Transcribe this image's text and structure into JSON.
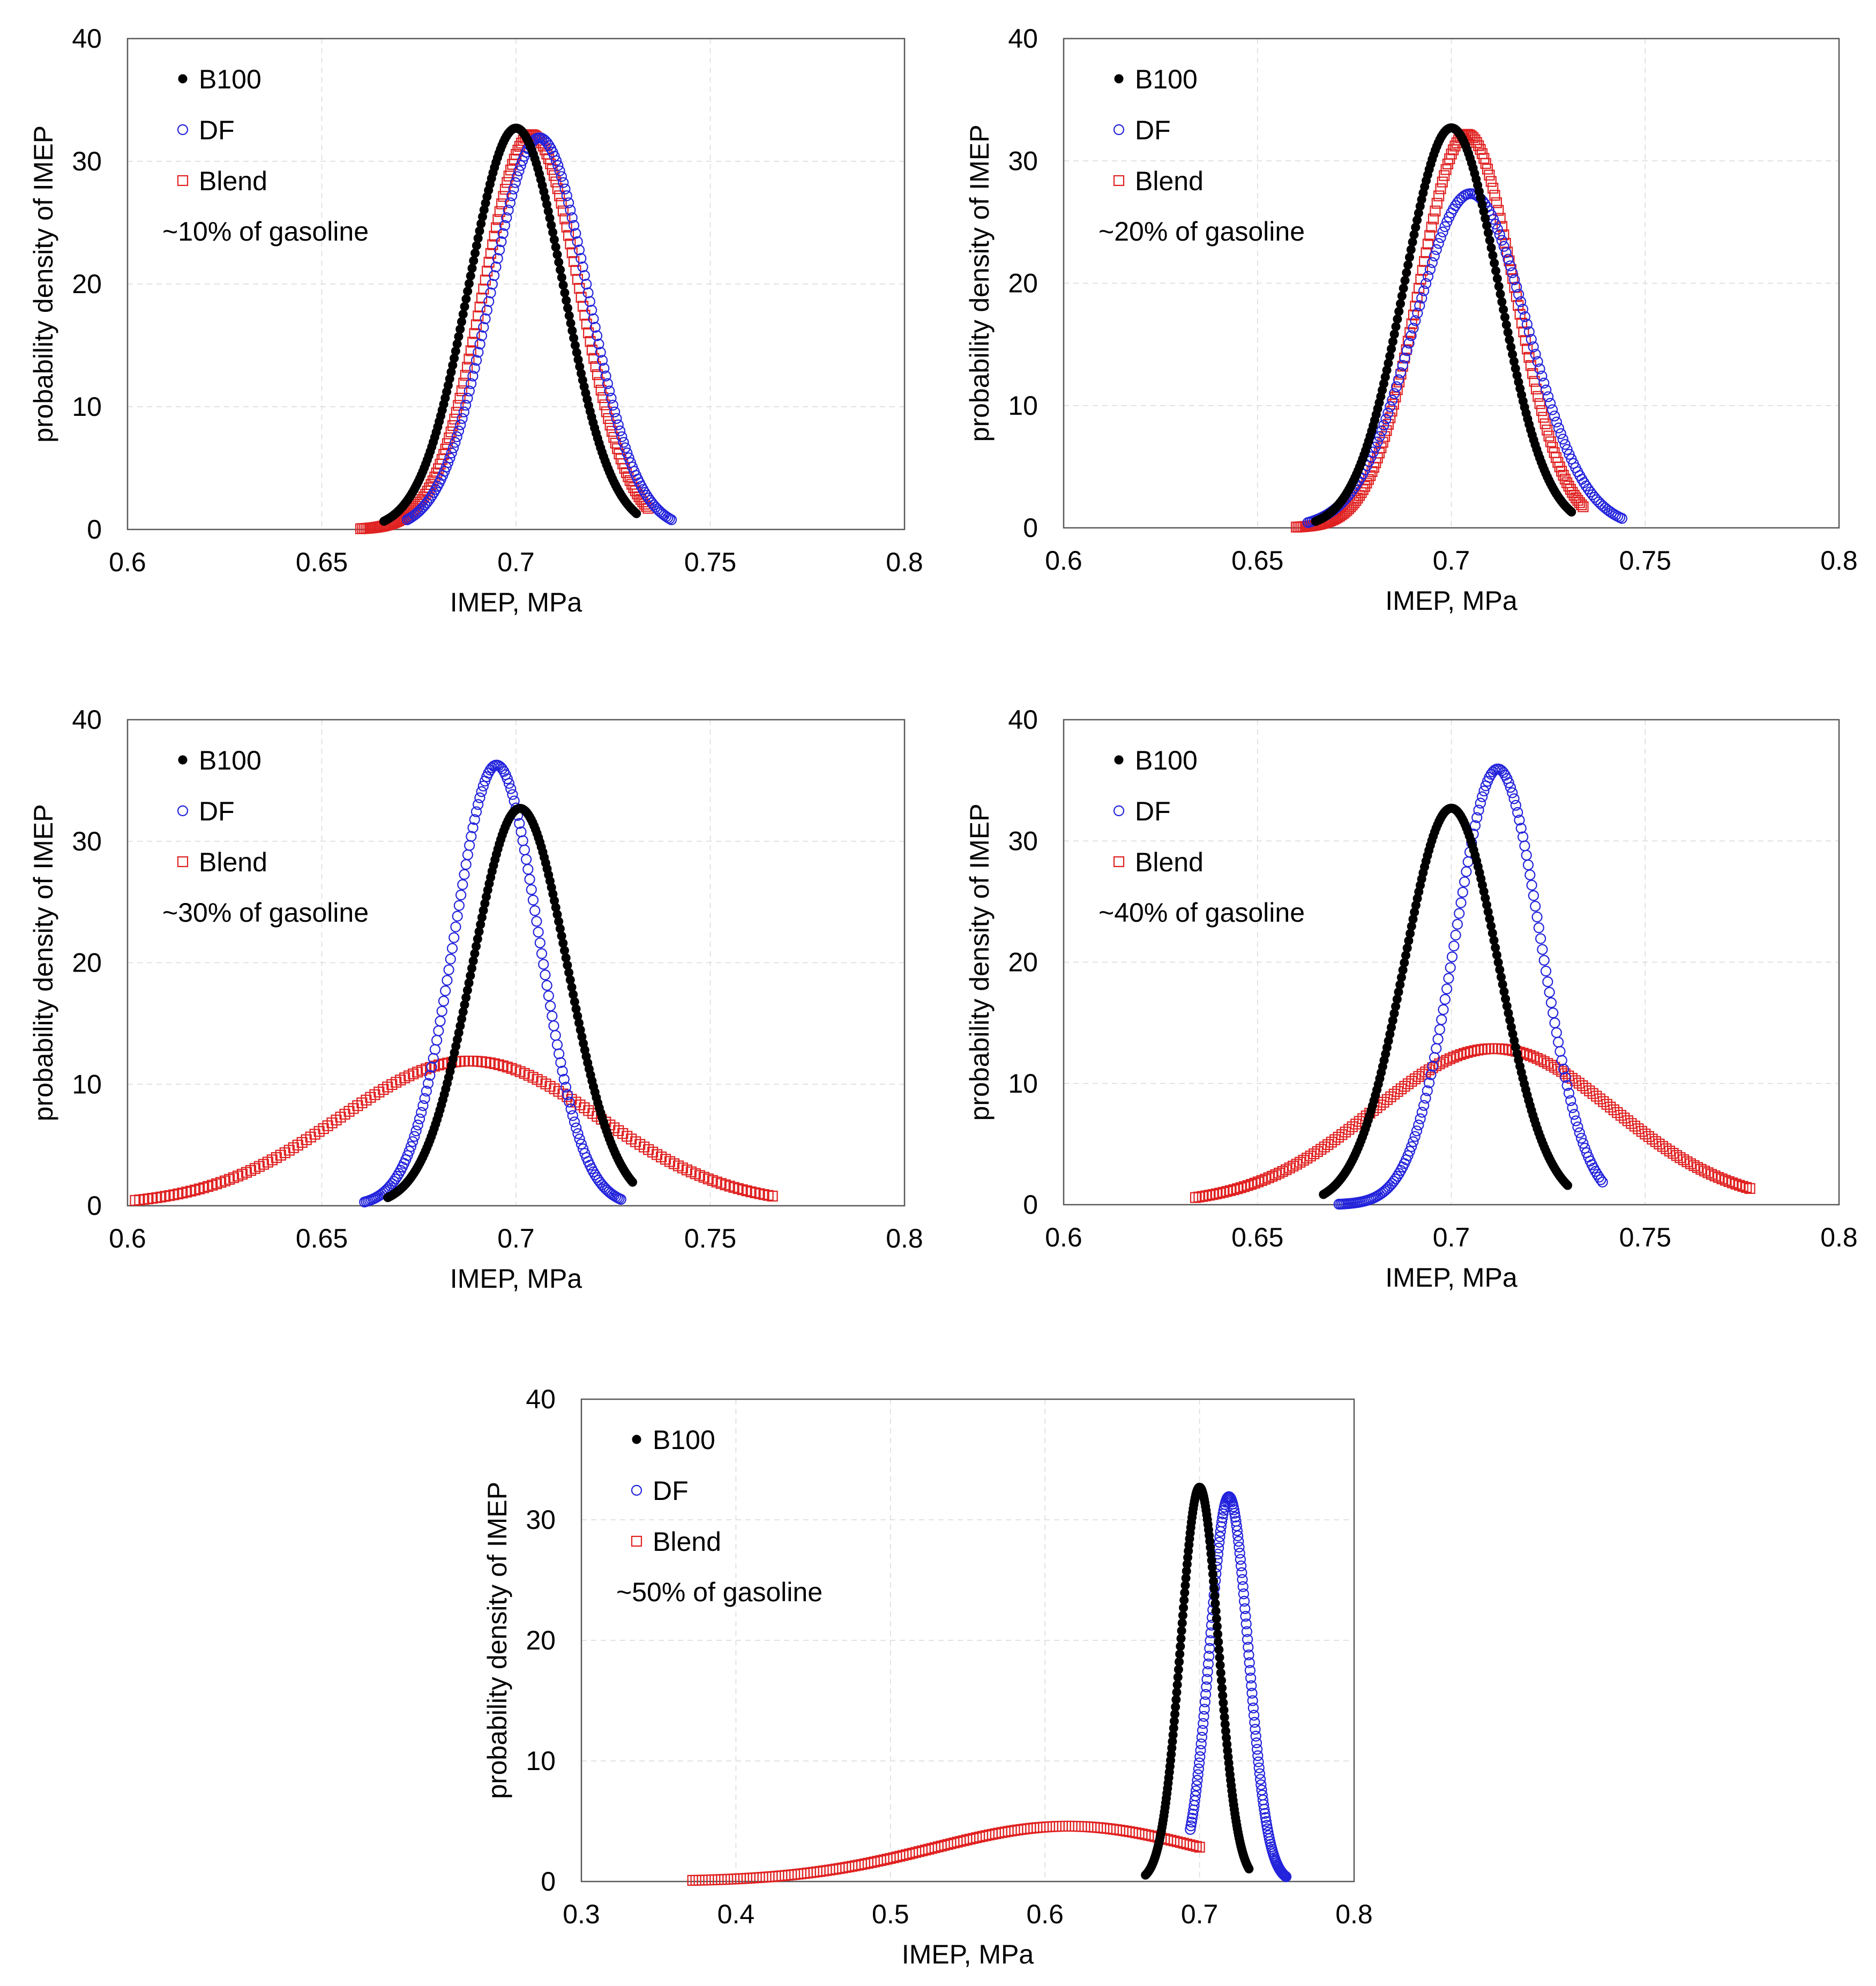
{
  "series_styles": {
    "B100": {
      "marker": "filled-circle",
      "color": "#000000"
    },
    "DF": {
      "marker": "open-circle",
      "color": "#2323dc"
    },
    "Blend": {
      "marker": "open-square",
      "color": "#e02020"
    }
  },
  "chart_data": [
    {
      "type": "scatter",
      "annotation": "~10% of gasoline",
      "xlabel": "IMEP, MPa",
      "ylabel": "probability density of IMEP",
      "xlim": [
        0.6,
        0.8
      ],
      "ylim": [
        0,
        40
      ],
      "xticks": [
        "0.6",
        "0.65",
        "0.7",
        "0.75",
        "0.8"
      ],
      "yticks": [
        "0",
        "10",
        "20",
        "30",
        "40"
      ],
      "legend": [
        "B100",
        "DF",
        "Blend"
      ],
      "series": [
        {
          "name": "B100",
          "mean": 0.7,
          "sd": 0.0122,
          "xmin": 0.666,
          "xmax": 0.731,
          "n": 170
        },
        {
          "name": "DF",
          "mean": 0.706,
          "sd": 0.0125,
          "xmin": 0.672,
          "xmax": 0.74,
          "n": 150
        },
        {
          "name": "Blend",
          "mean": 0.704,
          "sd": 0.0124,
          "xmin": 0.66,
          "xmax": 0.734,
          "n": 160
        }
      ]
    },
    {
      "type": "scatter",
      "annotation": "~20% of gasoline",
      "xlabel": "IMEP, MPa",
      "ylabel": "probability density of IMEP",
      "xlim": [
        0.6,
        0.8
      ],
      "ylim": [
        0,
        40
      ],
      "xticks": [
        "0.6",
        "0.65",
        "0.7",
        "0.75",
        "0.8"
      ],
      "yticks": [
        "0",
        "10",
        "20",
        "30",
        "40"
      ],
      "legend": [
        "B100",
        "DF",
        "Blend"
      ],
      "series": [
        {
          "name": "B100",
          "mean": 0.7,
          "sd": 0.0122,
          "xmin": 0.665,
          "xmax": 0.731,
          "n": 170
        },
        {
          "name": "DF",
          "mean": 0.705,
          "sd": 0.0146,
          "xmin": 0.663,
          "xmax": 0.744,
          "n": 150
        },
        {
          "name": "Blend",
          "mean": 0.704,
          "sd": 0.0124,
          "xmin": 0.66,
          "xmax": 0.734,
          "n": 160
        }
      ]
    },
    {
      "type": "scatter",
      "annotation": "~30% of gasoline",
      "xlabel": "IMEP, MPa",
      "ylabel": "probability density of IMEP",
      "xlim": [
        0.6,
        0.8
      ],
      "ylim": [
        0,
        40
      ],
      "xticks": [
        "0.6",
        "0.65",
        "0.7",
        "0.75",
        "0.8"
      ],
      "yticks": [
        "0",
        "10",
        "20",
        "30",
        "40"
      ],
      "legend": [
        "B100",
        "DF",
        "Blend"
      ],
      "series": [
        {
          "name": "B100",
          "mean": 0.701,
          "sd": 0.0122,
          "xmin": 0.667,
          "xmax": 0.73,
          "n": 170
        },
        {
          "name": "DF",
          "mean": 0.695,
          "sd": 0.011,
          "xmin": 0.661,
          "xmax": 0.727,
          "n": 150
        },
        {
          "name": "Blend",
          "mean": 0.688,
          "sd": 0.0335,
          "xmin": 0.602,
          "xmax": 0.766,
          "n": 150
        }
      ]
    },
    {
      "type": "scatter",
      "annotation": "~40% of gasoline",
      "xlabel": "IMEP, MPa",
      "ylabel": "probability density of IMEP",
      "xlim": [
        0.6,
        0.8
      ],
      "ylim": [
        0,
        40
      ],
      "xticks": [
        "0.6",
        "0.65",
        "0.7",
        "0.75",
        "0.8"
      ],
      "yticks": [
        "0",
        "10",
        "20",
        "30",
        "40"
      ],
      "legend": [
        "B100",
        "DF",
        "Blend"
      ],
      "series": [
        {
          "name": "B100",
          "mean": 0.7,
          "sd": 0.0122,
          "xmin": 0.667,
          "xmax": 0.73,
          "n": 170
        },
        {
          "name": "DF",
          "mean": 0.712,
          "sd": 0.0111,
          "xmin": 0.671,
          "xmax": 0.739,
          "n": 150
        },
        {
          "name": "Blend",
          "mean": 0.711,
          "sd": 0.031,
          "xmin": 0.634,
          "xmax": 0.777,
          "n": 160
        }
      ]
    },
    {
      "type": "scatter",
      "annotation": "~50% of gasoline",
      "xlabel": "IMEP, MPa",
      "ylabel": "probability density of IMEP",
      "xlim": [
        0.3,
        0.8
      ],
      "ylim": [
        0,
        40
      ],
      "xticks": [
        "0.3",
        "0.4",
        "0.5",
        "0.6",
        "0.7",
        "0.8"
      ],
      "yticks": [
        "0",
        "10",
        "20",
        "30",
        "40"
      ],
      "legend": [
        "B100",
        "DF",
        "Blend"
      ],
      "series": [
        {
          "name": "B100",
          "mean": 0.7,
          "sd": 0.0122,
          "xmin": 0.665,
          "xmax": 0.732,
          "n": 170
        },
        {
          "name": "DF",
          "mean": 0.719,
          "sd": 0.0125,
          "xmin": 0.694,
          "xmax": 0.756,
          "n": 150
        },
        {
          "name": "Blend",
          "mean": 0.615,
          "sd": 0.087,
          "xmin": 0.372,
          "xmax": 0.7,
          "n": 160
        }
      ]
    }
  ]
}
